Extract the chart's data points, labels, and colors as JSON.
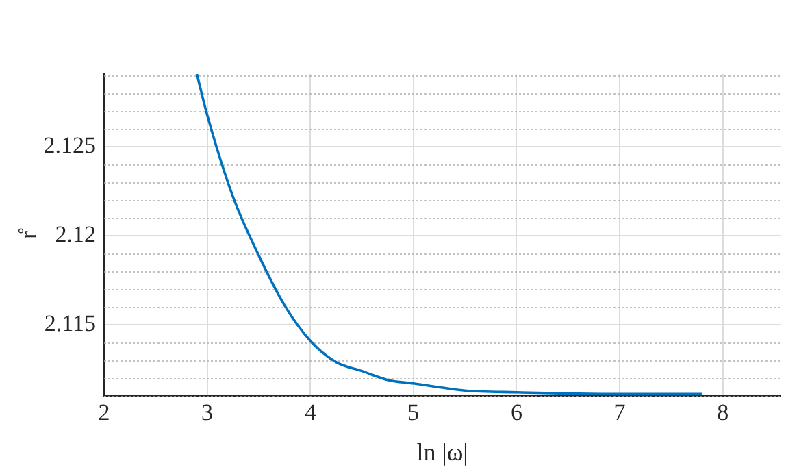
{
  "chart_data": {
    "type": "line",
    "xlabel": "ln |ω|",
    "ylabel": "r̊",
    "x": [
      2.9,
      3.0,
      3.25,
      3.5,
      3.75,
      4.0,
      4.25,
      4.5,
      4.75,
      5.0,
      5.5,
      6.0,
      7.0,
      7.8
    ],
    "series": [
      {
        "color": "#0072bd",
        "values": [
          2.1291,
          2.1268,
          2.1222,
          2.1189,
          2.1161,
          2.1141,
          2.1129,
          2.1124,
          2.1119,
          2.1117,
          2.1113,
          2.1112,
          2.1111,
          2.1111
        ]
      }
    ],
    "xlim": [
      2,
      8.56
    ],
    "xticks": [
      2,
      3,
      4,
      5,
      6,
      7,
      8
    ],
    "ylim": [
      2.111,
      2.1291
    ],
    "yticks": [
      {
        "value": 2.111,
        "label": null
      },
      {
        "value": 2.112,
        "label": null
      },
      {
        "value": 2.113,
        "label": null
      },
      {
        "value": 2.114,
        "label": null
      },
      2.115,
      {
        "value": 2.116,
        "label": null
      },
      {
        "value": 2.117,
        "label": null
      },
      {
        "value": 2.118,
        "label": null
      },
      {
        "value": 2.119,
        "label": null
      },
      2.12,
      {
        "value": 2.121,
        "label": null
      },
      {
        "value": 2.122,
        "label": null
      },
      {
        "value": 2.123,
        "label": null
      },
      {
        "value": 2.124,
        "label": null
      },
      2.125,
      {
        "value": 2.126,
        "label": null
      },
      {
        "value": 2.127,
        "label": null
      },
      {
        "value": 2.128,
        "label": null
      },
      {
        "value": 2.129,
        "label": null
      }
    ],
    "grid": true,
    "legend": false,
    "marker": "none",
    "line_style": "solid"
  }
}
